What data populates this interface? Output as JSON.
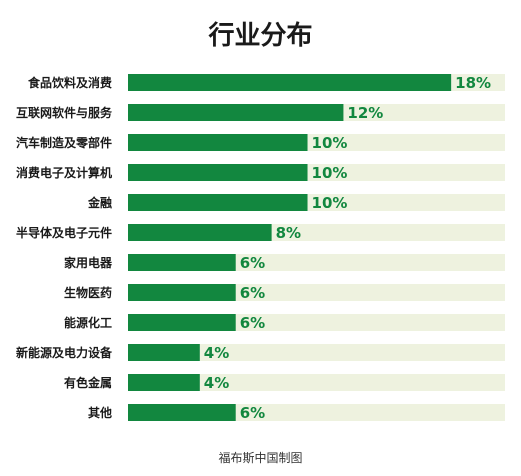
{
  "chart_data": {
    "type": "bar",
    "orientation": "horizontal",
    "title": "行业分布",
    "categories": [
      "食品饮料及消费",
      "互联网软件与服务",
      "汽车制造及零部件",
      "消费电子及计算机",
      "金融",
      "半导体及电子元件",
      "家用电器",
      "生物医药",
      "能源化工",
      "新能源及电力设备",
      "有色金属",
      "其他"
    ],
    "values": [
      18,
      12,
      10,
      10,
      10,
      8,
      6,
      6,
      6,
      4,
      4,
      6
    ],
    "value_labels": [
      "18%",
      "12%",
      "10%",
      "10%",
      "10%",
      "8%",
      "6%",
      "6%",
      "6%",
      "4%",
      "4%",
      "6%"
    ],
    "unit": "%",
    "xlim": [
      0,
      21
    ],
    "grid": false,
    "legend": "none",
    "colors": {
      "bar": "#12873f",
      "track": "#eef2df",
      "label": "#12873f"
    }
  },
  "source": "福布斯中国制图"
}
